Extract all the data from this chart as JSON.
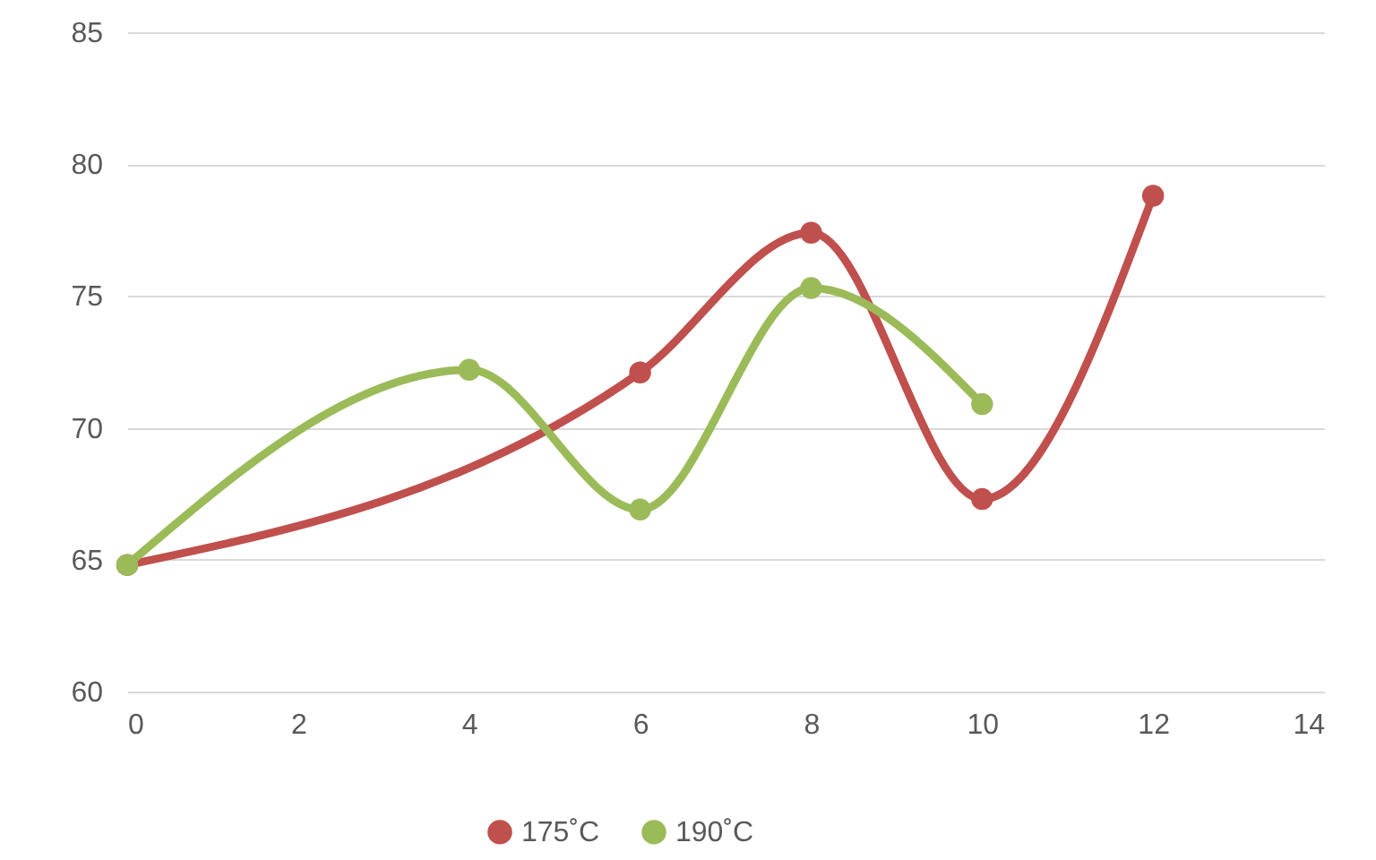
{
  "chart_data": {
    "type": "line",
    "series": [
      {
        "name": "175˚C",
        "color": "#c0504d",
        "x": [
          0,
          6,
          8,
          10,
          12
        ],
        "values": [
          64.8,
          72.1,
          77.4,
          67.3,
          78.8
        ]
      },
      {
        "name": "190˚C",
        "color": "#9bbb59",
        "x": [
          0,
          4,
          6,
          8,
          10
        ],
        "values": [
          64.8,
          72.2,
          66.9,
          75.3,
          70.9
        ]
      }
    ],
    "xlim": [
      0,
      14
    ],
    "xticks": [
      0,
      2,
      4,
      6,
      8,
      10,
      12,
      14
    ],
    "ylim": [
      60,
      85
    ],
    "yticks": [
      60,
      65,
      70,
      75,
      80,
      85
    ],
    "grid": "y",
    "legend": "bottom",
    "marker": "circle",
    "line_style": "solid"
  }
}
